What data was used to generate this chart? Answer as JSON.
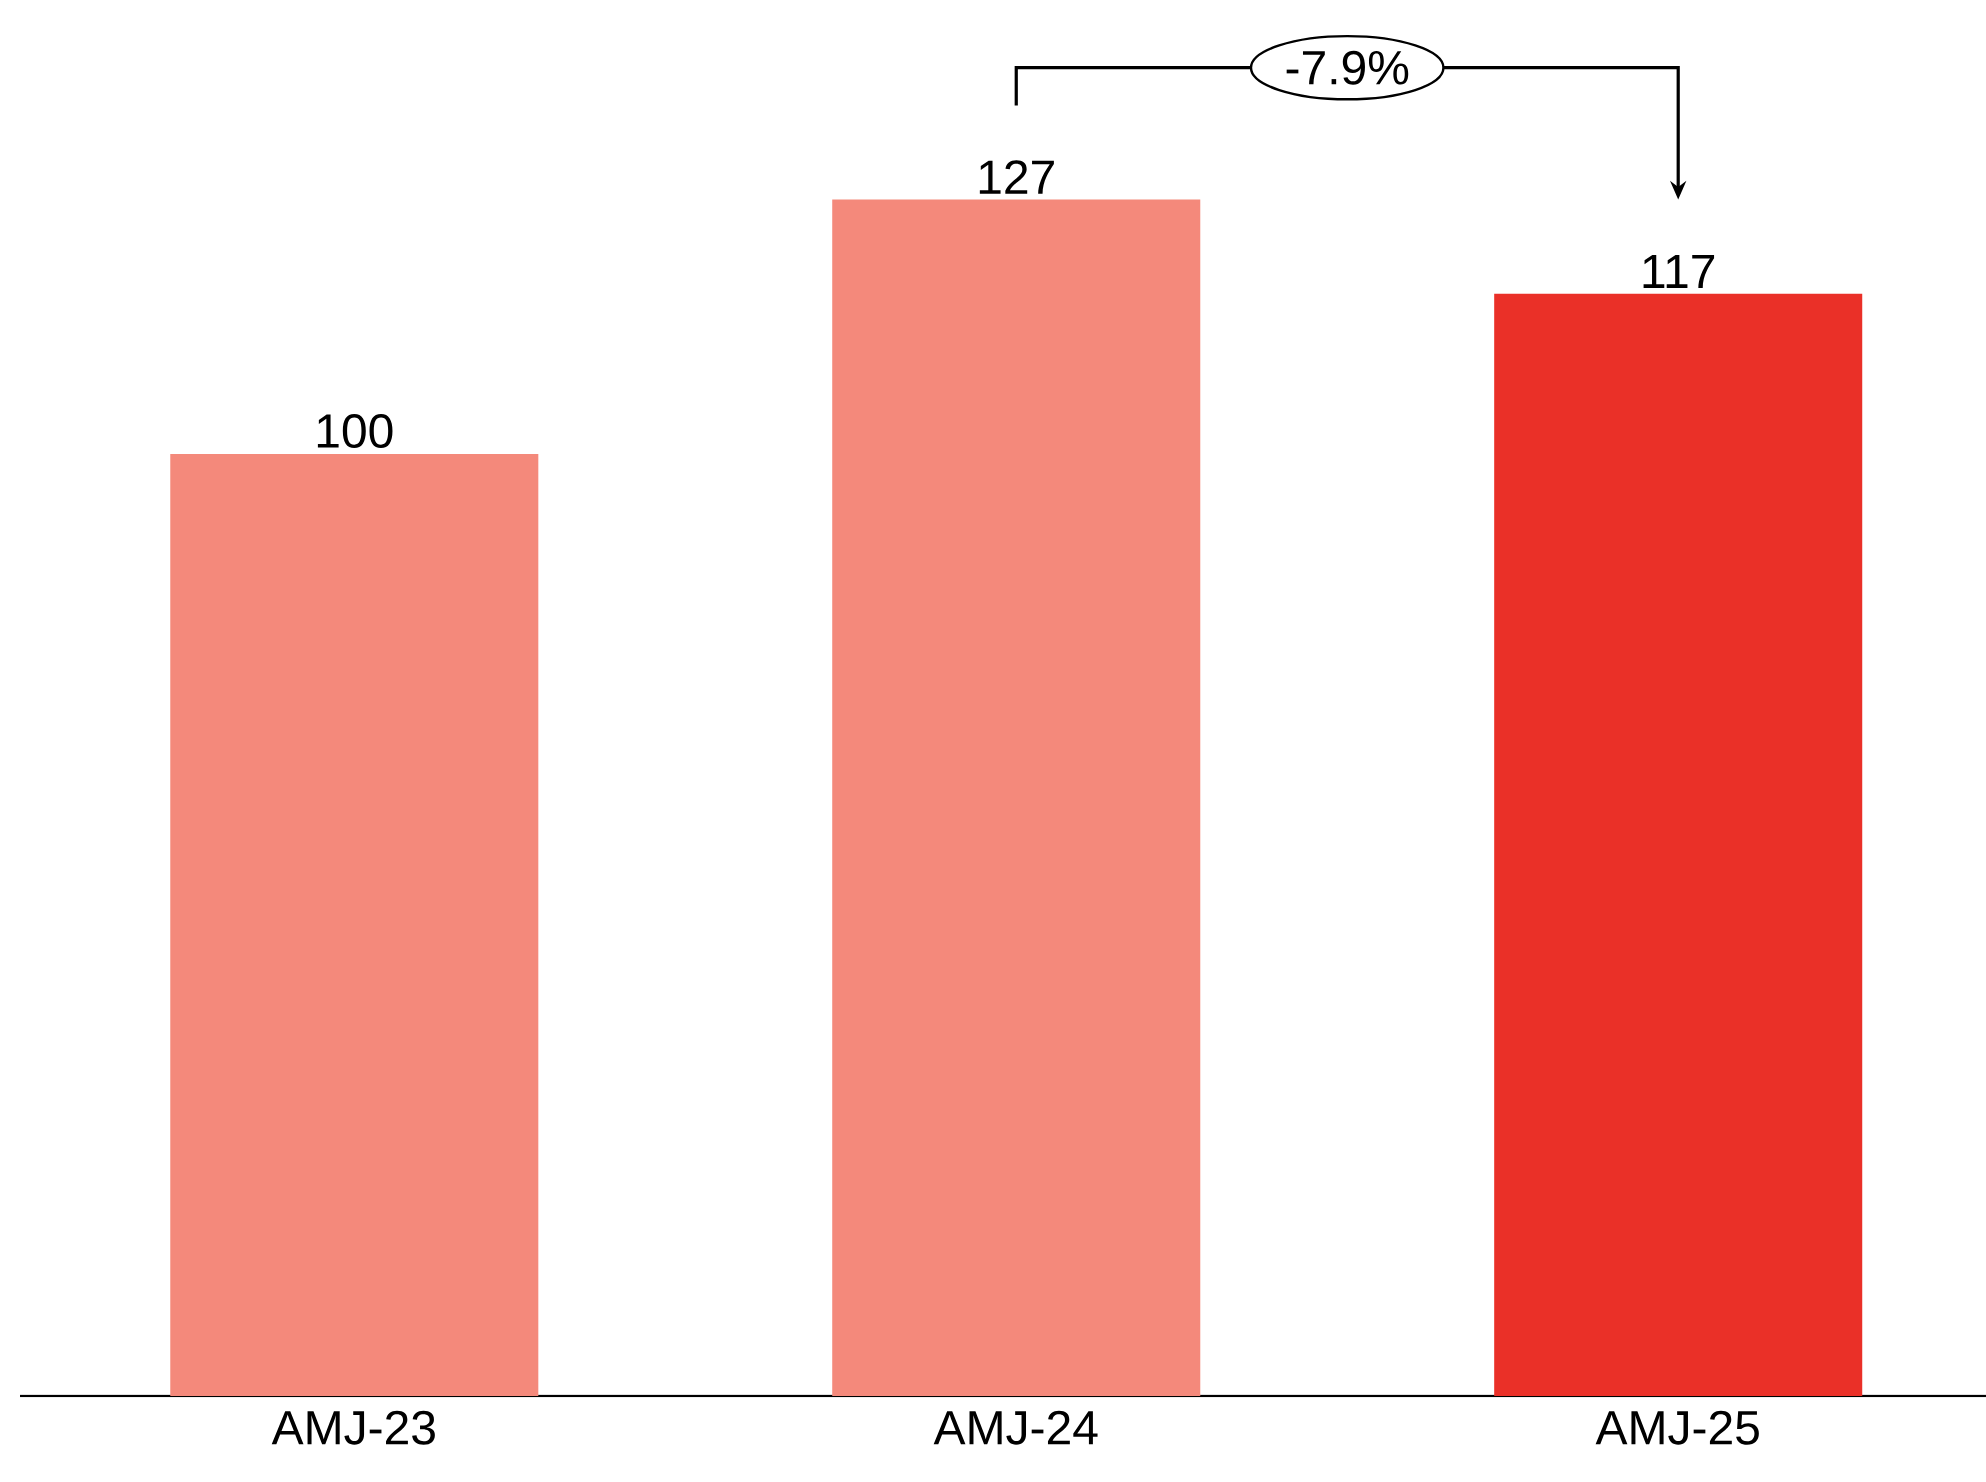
{
  "chart_data": {
    "type": "bar",
    "categories": [
      "AMJ-23",
      "AMJ-24",
      "AMJ-25"
    ],
    "values": [
      100,
      127,
      117
    ],
    "colors": [
      "#f4897b",
      "#f4897b",
      "#ea3028"
    ],
    "data_labels": true,
    "annotations": [
      "-7.9%"
    ]
  }
}
